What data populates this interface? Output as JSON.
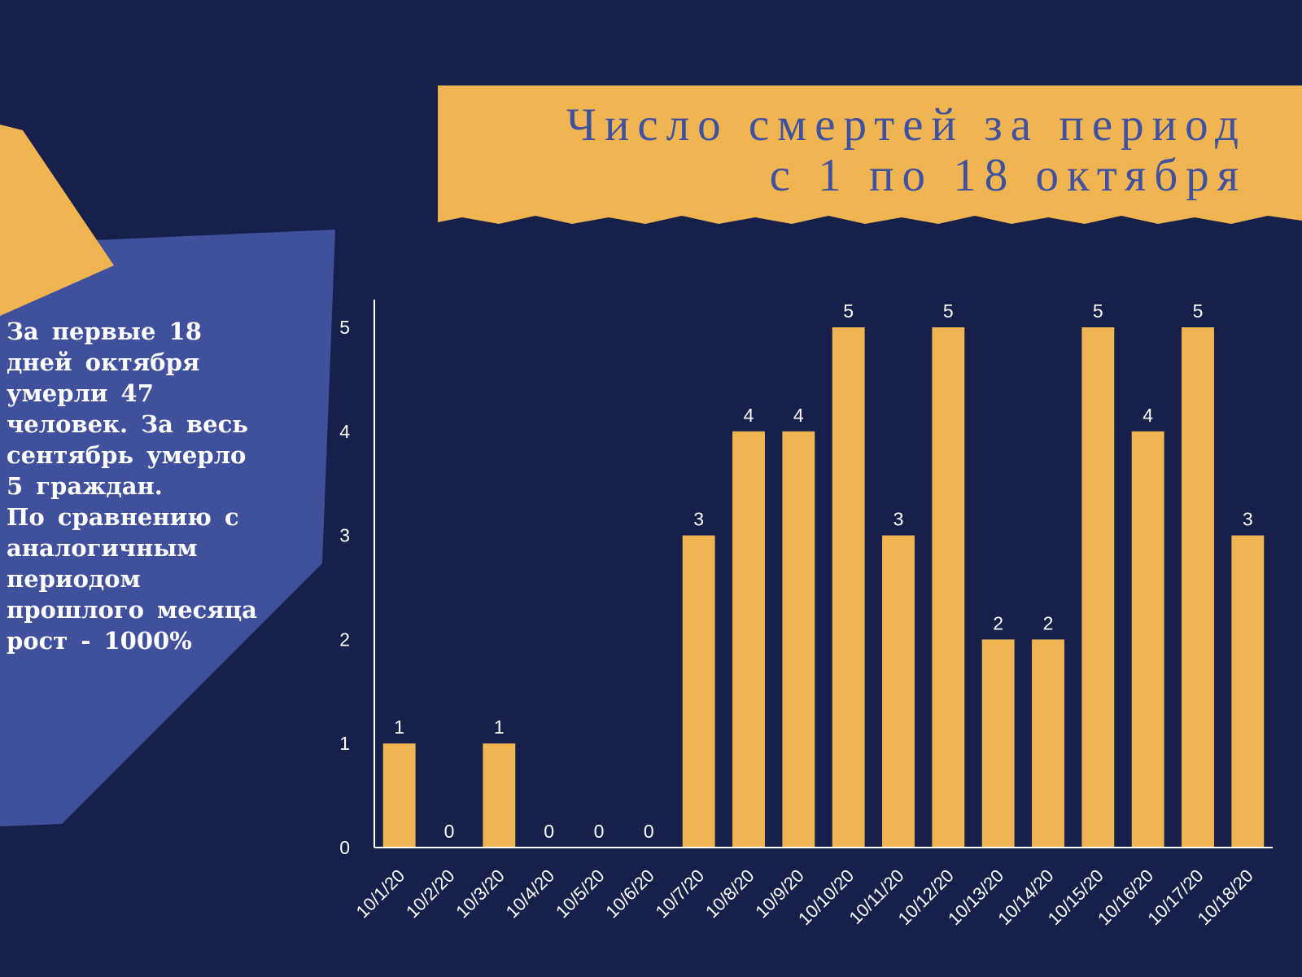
{
  "colors": {
    "background": "#171f4b",
    "accent": "#f0b451",
    "panel": "#40509c",
    "title_text": "#3f51a0",
    "text": "#ffffff"
  },
  "title": {
    "line1": "Число смертей за период",
    "line2": "с 1 по 18 октября"
  },
  "side_text": "За первые 18 дней октября умерли 47 человек. За весь сентябрь умерло 5 граждан.\nПо сравнению с аналогичным периодом прошлого месяца рост - 1000%",
  "chart_data": {
    "type": "bar",
    "categories": [
      "10/1/20",
      "10/2/20",
      "10/3/20",
      "10/4/20",
      "10/5/20",
      "10/6/20",
      "10/7/20",
      "10/8/20",
      "10/9/20",
      "10/10/20",
      "10/11/20",
      "10/12/20",
      "10/13/20",
      "10/14/20",
      "10/15/20",
      "10/16/20",
      "10/17/20",
      "10/18/20"
    ],
    "values": [
      1,
      0,
      1,
      0,
      0,
      0,
      3,
      4,
      4,
      5,
      3,
      5,
      2,
      2,
      5,
      4,
      5,
      3
    ],
    "y_ticks": [
      0,
      1,
      2,
      3,
      4,
      5
    ],
    "ylim": [
      0,
      5
    ],
    "grid": false,
    "legend": false,
    "data_labels": true,
    "bar_color": "#f0b451"
  }
}
